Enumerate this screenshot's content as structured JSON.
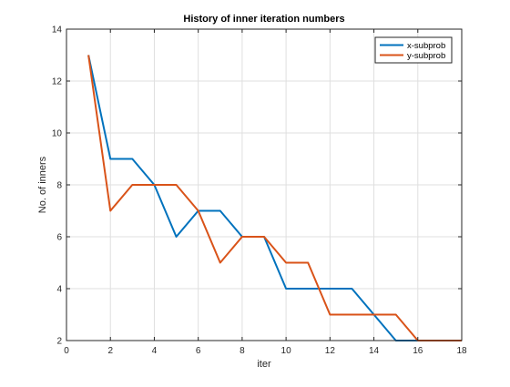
{
  "chart_data": {
    "type": "line",
    "title": "History of inner iteration numbers",
    "xlabel": "iter",
    "ylabel": "No. of inners",
    "xlim": [
      0,
      18
    ],
    "ylim": [
      2,
      14
    ],
    "xticks": [
      0,
      2,
      4,
      6,
      8,
      10,
      12,
      14,
      16,
      18
    ],
    "yticks": [
      2,
      4,
      6,
      8,
      10,
      12,
      14
    ],
    "grid": true,
    "legend_position": "top-right",
    "series": [
      {
        "name": "x-subprob",
        "color": "#0072BD",
        "x": [
          1,
          2,
          3,
          4,
          5,
          6,
          7,
          8,
          9,
          10,
          11,
          12,
          13,
          14,
          15,
          16,
          17,
          18
        ],
        "y": [
          13,
          9,
          9,
          8,
          6,
          7,
          7,
          6,
          6,
          4,
          4,
          4,
          4,
          3,
          2,
          2,
          2,
          2
        ]
      },
      {
        "name": "y-subprob",
        "color": "#D95319",
        "x": [
          1,
          2,
          3,
          4,
          5,
          6,
          7,
          8,
          9,
          10,
          11,
          12,
          13,
          14,
          15,
          16,
          17,
          18
        ],
        "y": [
          13,
          7,
          8,
          8,
          8,
          7,
          5,
          6,
          6,
          5,
          5,
          3,
          3,
          3,
          3,
          2,
          2,
          2
        ]
      }
    ]
  }
}
